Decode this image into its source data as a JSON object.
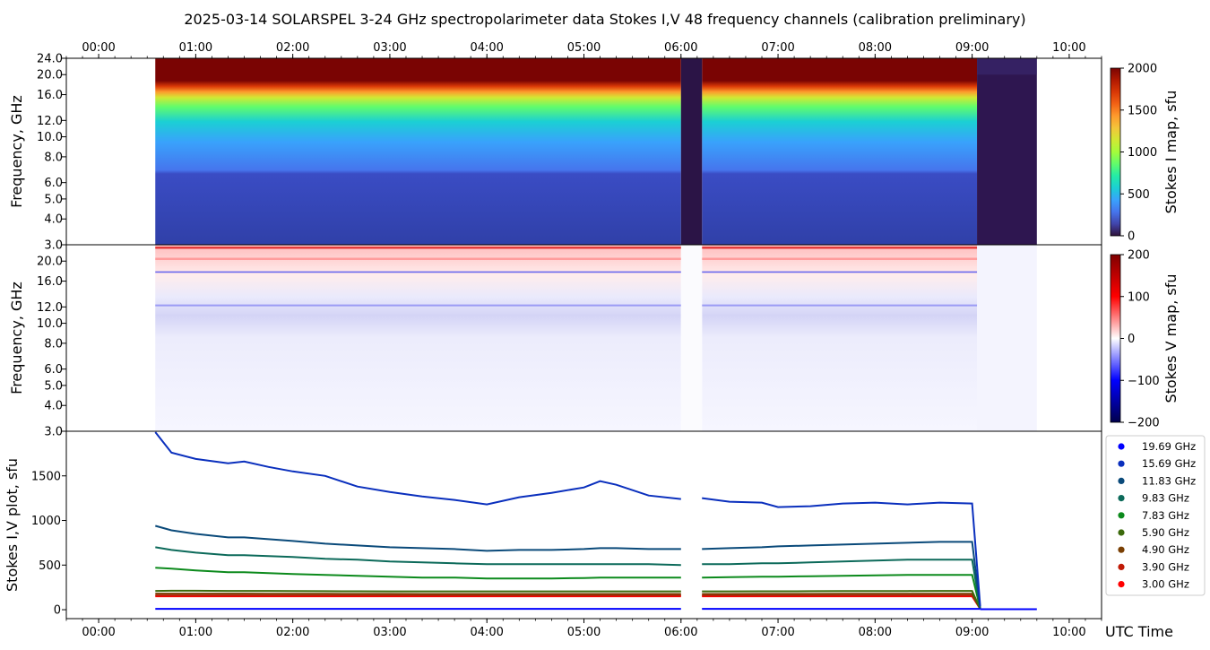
{
  "title": "2025-03-14  SOLARSPEL  3-24 GHz spectropolarimeter data   Stokes I,V   48 frequency channels   (calibration preliminary)",
  "time_ticks": [
    "00:00",
    "01:00",
    "02:00",
    "03:00",
    "04:00",
    "05:00",
    "06:00",
    "07:00",
    "08:00",
    "09:00",
    "10:00"
  ],
  "x_axis_label": "UTC Time",
  "colors": {
    "stokes_i_cmap": [
      "#30123b",
      "#4145ab",
      "#4675ed",
      "#39a2fc",
      "#1bcfd4",
      "#24eca6",
      "#61fc6c",
      "#a4fc3b",
      "#d1e834",
      "#f3c63a",
      "#fe9b2d",
      "#f36315",
      "#d93806",
      "#b11901",
      "#7a0403"
    ],
    "stokes_v_cmap": [
      "#00004c",
      "#0000ff",
      "#ffffff",
      "#ff0000",
      "#7f0000"
    ]
  },
  "chart_data": [
    {
      "type": "heatmap",
      "name": "stokes-i-map",
      "ylabel": "Frequency, GHz",
      "y_scale": "log",
      "ylim": [
        3.0,
        24.0
      ],
      "y_ticks": [
        "3.0",
        "4.0",
        "5.0",
        "6.0",
        "8.0",
        "10.0",
        "12.0",
        "16.0",
        "20.0",
        "24.0"
      ],
      "y_tick_values": [
        3,
        4,
        5,
        6,
        8,
        10,
        12,
        16,
        20,
        24
      ],
      "xlim": [
        "23:40",
        "10:20"
      ],
      "data_start": "00:35",
      "data_end": "09:40",
      "gap": [
        "06:00",
        "06:13"
      ],
      "colorbar": {
        "label": "Stokes I map, sfu",
        "min": 0,
        "max": 2000,
        "ticks": [
          "0",
          "500",
          "1000",
          "1500",
          "2000"
        ]
      }
    },
    {
      "type": "heatmap",
      "name": "stokes-v-map",
      "ylabel": "Frequency, GHz",
      "y_scale": "log",
      "ylim": [
        3.0,
        24.0
      ],
      "y_ticks": [
        "3.0",
        "4.0",
        "5.0",
        "6.0",
        "8.0",
        "10.0",
        "12.0",
        "16.0",
        "20.0"
      ],
      "y_tick_values": [
        3,
        4,
        5,
        6,
        8,
        10,
        12,
        16,
        20
      ],
      "colorbar": {
        "label": "Stokes V map, sfu",
        "min": -200,
        "max": 200,
        "ticks": [
          "200",
          "100",
          "0",
          "−100",
          "−200"
        ]
      }
    },
    {
      "type": "line",
      "name": "stokes-iv-plot",
      "ylabel": "Stokes I,V plot, sfu",
      "ylim": [
        -100,
        2000
      ],
      "y_ticks": [
        "0",
        "500",
        "1000",
        "1500"
      ],
      "x_times": [
        "00:35",
        "00:45",
        "01:00",
        "01:20",
        "01:30",
        "01:45",
        "02:00",
        "02:20",
        "02:40",
        "03:00",
        "03:20",
        "03:40",
        "04:00",
        "04:20",
        "04:40",
        "05:00",
        "05:10",
        "05:20",
        "05:40",
        "06:00",
        "06:13",
        "06:30",
        "06:50",
        "07:00",
        "07:20",
        "07:40",
        "08:00",
        "08:20",
        "08:40",
        "09:00",
        "09:05"
      ],
      "series": [
        {
          "name": "19.69 GHz",
          "color": "#0000ff",
          "values": [
            10,
            10,
            10,
            10,
            10,
            10,
            10,
            10,
            10,
            10,
            10,
            10,
            10,
            10,
            10,
            10,
            10,
            10,
            10,
            10,
            10,
            10,
            10,
            10,
            10,
            10,
            10,
            10,
            10,
            10,
            10
          ]
        },
        {
          "name": "15.69 GHz",
          "color": "#0a2fbd",
          "values": [
            1990,
            1760,
            1690,
            1640,
            1660,
            1600,
            1550,
            1500,
            1380,
            1320,
            1270,
            1230,
            1180,
            1260,
            1310,
            1370,
            1440,
            1400,
            1280,
            1240,
            1250,
            1210,
            1200,
            1150,
            1160,
            1190,
            1200,
            1180,
            1200,
            1190,
            40
          ]
        },
        {
          "name": "11.83 GHz",
          "color": "#0a4a7a",
          "values": [
            940,
            890,
            850,
            810,
            810,
            790,
            770,
            740,
            720,
            700,
            690,
            680,
            660,
            670,
            670,
            680,
            690,
            690,
            680,
            680,
            680,
            690,
            700,
            710,
            720,
            730,
            740,
            750,
            760,
            760,
            20
          ]
        },
        {
          "name": "9.83 GHz",
          "color": "#0c6a5a",
          "values": [
            700,
            670,
            640,
            610,
            610,
            600,
            590,
            570,
            560,
            540,
            530,
            520,
            510,
            510,
            510,
            510,
            510,
            510,
            510,
            500,
            510,
            510,
            520,
            520,
            530,
            540,
            550,
            560,
            560,
            560,
            15
          ]
        },
        {
          "name": "7.83 GHz",
          "color": "#0c8a1c",
          "values": [
            470,
            460,
            440,
            420,
            420,
            410,
            400,
            390,
            380,
            370,
            360,
            360,
            350,
            350,
            350,
            355,
            360,
            360,
            360,
            360,
            360,
            365,
            370,
            370,
            375,
            380,
            385,
            390,
            390,
            390,
            12
          ]
        },
        {
          "name": "5.90 GHz",
          "color": "#3c6a0c",
          "values": [
            210,
            212,
            212,
            210,
            210,
            210,
            208,
            207,
            206,
            205,
            205,
            205,
            205,
            205,
            205,
            205,
            205,
            205,
            205,
            205,
            205,
            205,
            206,
            206,
            207,
            208,
            208,
            209,
            210,
            210,
            10
          ]
        },
        {
          "name": "4.90 GHz",
          "color": "#7a4004",
          "values": [
            180,
            180,
            180,
            180,
            180,
            178,
            178,
            178,
            177,
            177,
            176,
            176,
            176,
            176,
            176,
            176,
            176,
            176,
            176,
            176,
            176,
            176,
            177,
            177,
            177,
            178,
            178,
            178,
            178,
            178,
            10
          ]
        },
        {
          "name": "3.90 GHz",
          "color": "#c01a06",
          "values": [
            160,
            160,
            160,
            160,
            160,
            160,
            160,
            160,
            160,
            160,
            160,
            160,
            160,
            160,
            160,
            160,
            160,
            160,
            160,
            160,
            160,
            160,
            160,
            160,
            160,
            160,
            160,
            160,
            160,
            160,
            10
          ]
        },
        {
          "name": "3.00 GHz",
          "color": "#ff0000",
          "values": [
            150,
            150,
            150,
            150,
            150,
            150,
            150,
            150,
            150,
            150,
            150,
            150,
            150,
            150,
            150,
            150,
            150,
            150,
            150,
            150,
            150,
            150,
            150,
            150,
            150,
            150,
            150,
            150,
            150,
            150,
            10
          ]
        }
      ]
    }
  ]
}
